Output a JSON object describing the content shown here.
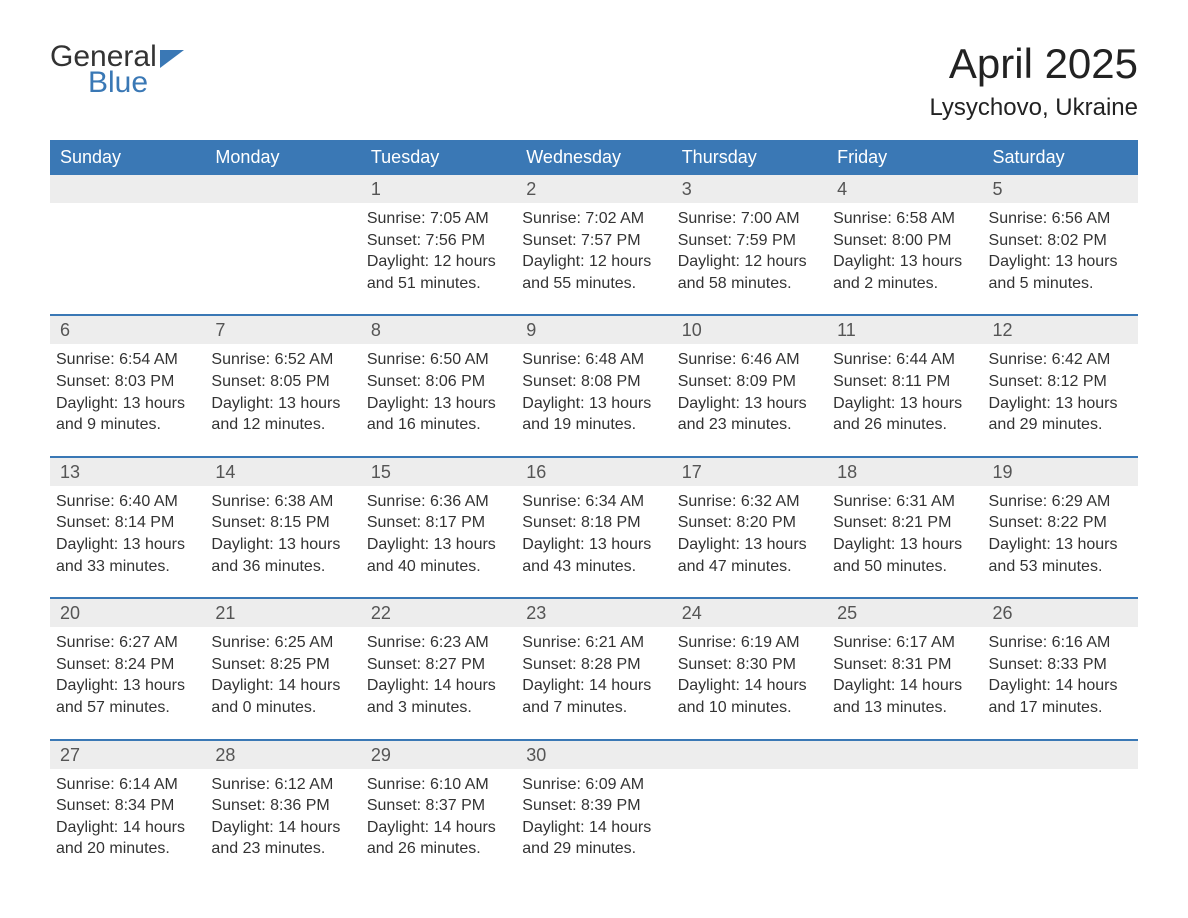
{
  "logo": {
    "text_general": "General",
    "text_blue": "Blue"
  },
  "title": "April 2025",
  "location": "Lysychovo, Ukraine",
  "colors": {
    "header_bg": "#3a78b5",
    "header_text": "#ffffff",
    "daynum_bg": "#ededed",
    "body_text": "#333333",
    "row_border": "#3a78b5"
  },
  "weekdays": [
    "Sunday",
    "Monday",
    "Tuesday",
    "Wednesday",
    "Thursday",
    "Friday",
    "Saturday"
  ],
  "weeks": [
    [
      {
        "day": "",
        "sunrise": "",
        "sunset": "",
        "daylight": ""
      },
      {
        "day": "",
        "sunrise": "",
        "sunset": "",
        "daylight": ""
      },
      {
        "day": "1",
        "sunrise": "Sunrise: 7:05 AM",
        "sunset": "Sunset: 7:56 PM",
        "daylight": "Daylight: 12 hours and 51 minutes."
      },
      {
        "day": "2",
        "sunrise": "Sunrise: 7:02 AM",
        "sunset": "Sunset: 7:57 PM",
        "daylight": "Daylight: 12 hours and 55 minutes."
      },
      {
        "day": "3",
        "sunrise": "Sunrise: 7:00 AM",
        "sunset": "Sunset: 7:59 PM",
        "daylight": "Daylight: 12 hours and 58 minutes."
      },
      {
        "day": "4",
        "sunrise": "Sunrise: 6:58 AM",
        "sunset": "Sunset: 8:00 PM",
        "daylight": "Daylight: 13 hours and 2 minutes."
      },
      {
        "day": "5",
        "sunrise": "Sunrise: 6:56 AM",
        "sunset": "Sunset: 8:02 PM",
        "daylight": "Daylight: 13 hours and 5 minutes."
      }
    ],
    [
      {
        "day": "6",
        "sunrise": "Sunrise: 6:54 AM",
        "sunset": "Sunset: 8:03 PM",
        "daylight": "Daylight: 13 hours and 9 minutes."
      },
      {
        "day": "7",
        "sunrise": "Sunrise: 6:52 AM",
        "sunset": "Sunset: 8:05 PM",
        "daylight": "Daylight: 13 hours and 12 minutes."
      },
      {
        "day": "8",
        "sunrise": "Sunrise: 6:50 AM",
        "sunset": "Sunset: 8:06 PM",
        "daylight": "Daylight: 13 hours and 16 minutes."
      },
      {
        "day": "9",
        "sunrise": "Sunrise: 6:48 AM",
        "sunset": "Sunset: 8:08 PM",
        "daylight": "Daylight: 13 hours and 19 minutes."
      },
      {
        "day": "10",
        "sunrise": "Sunrise: 6:46 AM",
        "sunset": "Sunset: 8:09 PM",
        "daylight": "Daylight: 13 hours and 23 minutes."
      },
      {
        "day": "11",
        "sunrise": "Sunrise: 6:44 AM",
        "sunset": "Sunset: 8:11 PM",
        "daylight": "Daylight: 13 hours and 26 minutes."
      },
      {
        "day": "12",
        "sunrise": "Sunrise: 6:42 AM",
        "sunset": "Sunset: 8:12 PM",
        "daylight": "Daylight: 13 hours and 29 minutes."
      }
    ],
    [
      {
        "day": "13",
        "sunrise": "Sunrise: 6:40 AM",
        "sunset": "Sunset: 8:14 PM",
        "daylight": "Daylight: 13 hours and 33 minutes."
      },
      {
        "day": "14",
        "sunrise": "Sunrise: 6:38 AM",
        "sunset": "Sunset: 8:15 PM",
        "daylight": "Daylight: 13 hours and 36 minutes."
      },
      {
        "day": "15",
        "sunrise": "Sunrise: 6:36 AM",
        "sunset": "Sunset: 8:17 PM",
        "daylight": "Daylight: 13 hours and 40 minutes."
      },
      {
        "day": "16",
        "sunrise": "Sunrise: 6:34 AM",
        "sunset": "Sunset: 8:18 PM",
        "daylight": "Daylight: 13 hours and 43 minutes."
      },
      {
        "day": "17",
        "sunrise": "Sunrise: 6:32 AM",
        "sunset": "Sunset: 8:20 PM",
        "daylight": "Daylight: 13 hours and 47 minutes."
      },
      {
        "day": "18",
        "sunrise": "Sunrise: 6:31 AM",
        "sunset": "Sunset: 8:21 PM",
        "daylight": "Daylight: 13 hours and 50 minutes."
      },
      {
        "day": "19",
        "sunrise": "Sunrise: 6:29 AM",
        "sunset": "Sunset: 8:22 PM",
        "daylight": "Daylight: 13 hours and 53 minutes."
      }
    ],
    [
      {
        "day": "20",
        "sunrise": "Sunrise: 6:27 AM",
        "sunset": "Sunset: 8:24 PM",
        "daylight": "Daylight: 13 hours and 57 minutes."
      },
      {
        "day": "21",
        "sunrise": "Sunrise: 6:25 AM",
        "sunset": "Sunset: 8:25 PM",
        "daylight": "Daylight: 14 hours and 0 minutes."
      },
      {
        "day": "22",
        "sunrise": "Sunrise: 6:23 AM",
        "sunset": "Sunset: 8:27 PM",
        "daylight": "Daylight: 14 hours and 3 minutes."
      },
      {
        "day": "23",
        "sunrise": "Sunrise: 6:21 AM",
        "sunset": "Sunset: 8:28 PM",
        "daylight": "Daylight: 14 hours and 7 minutes."
      },
      {
        "day": "24",
        "sunrise": "Sunrise: 6:19 AM",
        "sunset": "Sunset: 8:30 PM",
        "daylight": "Daylight: 14 hours and 10 minutes."
      },
      {
        "day": "25",
        "sunrise": "Sunrise: 6:17 AM",
        "sunset": "Sunset: 8:31 PM",
        "daylight": "Daylight: 14 hours and 13 minutes."
      },
      {
        "day": "26",
        "sunrise": "Sunrise: 6:16 AM",
        "sunset": "Sunset: 8:33 PM",
        "daylight": "Daylight: 14 hours and 17 minutes."
      }
    ],
    [
      {
        "day": "27",
        "sunrise": "Sunrise: 6:14 AM",
        "sunset": "Sunset: 8:34 PM",
        "daylight": "Daylight: 14 hours and 20 minutes."
      },
      {
        "day": "28",
        "sunrise": "Sunrise: 6:12 AM",
        "sunset": "Sunset: 8:36 PM",
        "daylight": "Daylight: 14 hours and 23 minutes."
      },
      {
        "day": "29",
        "sunrise": "Sunrise: 6:10 AM",
        "sunset": "Sunset: 8:37 PM",
        "daylight": "Daylight: 14 hours and 26 minutes."
      },
      {
        "day": "30",
        "sunrise": "Sunrise: 6:09 AM",
        "sunset": "Sunset: 8:39 PM",
        "daylight": "Daylight: 14 hours and 29 minutes."
      },
      {
        "day": "",
        "sunrise": "",
        "sunset": "",
        "daylight": ""
      },
      {
        "day": "",
        "sunrise": "",
        "sunset": "",
        "daylight": ""
      },
      {
        "day": "",
        "sunrise": "",
        "sunset": "",
        "daylight": ""
      }
    ]
  ]
}
